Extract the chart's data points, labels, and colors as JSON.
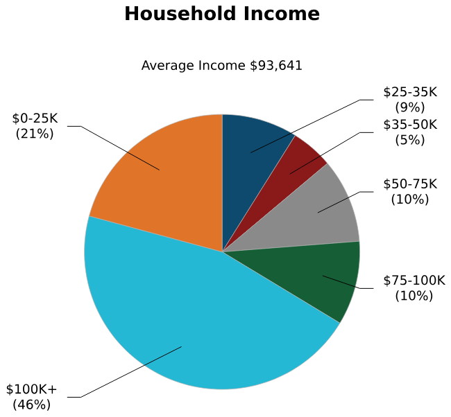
{
  "chart_data": {
    "type": "pie",
    "title": "Household Income",
    "subtitle": "Average Income  $93,641",
    "categories": [
      "$25-35K",
      "$35-50K",
      "$50-75K",
      "$75-100K",
      "$100K+",
      "$0-25K"
    ],
    "values": [
      9,
      5,
      10,
      10,
      46,
      21
    ],
    "value_labels": [
      "(9%)",
      "(5%)",
      "(10%)",
      "(10%)",
      "(46%)",
      "(21%)"
    ],
    "colors": [
      "#0d4a6e",
      "#8a1a1a",
      "#8a8a8a",
      "#155e36",
      "#24b8d4",
      "#e07428"
    ],
    "legend": false
  }
}
